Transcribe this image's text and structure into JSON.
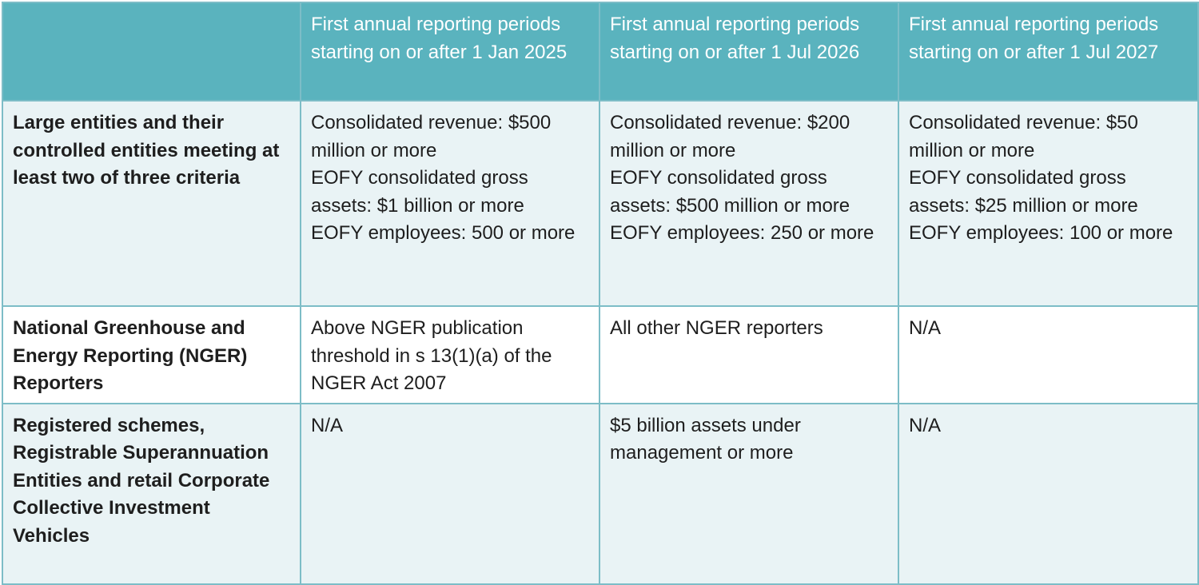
{
  "header": {
    "corner": "",
    "columns": [
      "First annual reporting periods starting on or after 1 Jan 2025",
      "First annual reporting periods starting on or after 1 Jul 2026",
      "First annual reporting periods starting on or after 1 Jul 2027"
    ]
  },
  "rows": [
    {
      "label": "Large entities and their controlled entities meeting at least two of three criteria",
      "cells": [
        "Consolidated revenue: $500 million or more\nEOFY consolidated gross assets: $1 billion or more\nEOFY employees: 500 or more",
        "Consolidated revenue: $200 million or more\nEOFY consolidated gross assets: $500 million or more\nEOFY employees: 250 or more",
        "Consolidated revenue: $50 million or more\nEOFY consolidated gross assets: $25 million or more\nEOFY employees: 100 or more"
      ]
    },
    {
      "label": "National Greenhouse and Energy Reporting (NGER) Reporters",
      "cells": [
        "Above NGER publication threshold in s 13(1)(a) of the NGER Act 2007",
        "All other NGER reporters",
        "N/A"
      ]
    },
    {
      "label": "Registered schemes, Registrable Superannuation Entities and retail Corporate Collective Investment Vehicles",
      "cells": [
        "N/A",
        "$5 billion assets under management or more",
        "N/A"
      ]
    }
  ],
  "colors": {
    "header_bg": "#5ab3be",
    "row_shade": "#e9f3f5",
    "border": "#7dbdc7"
  }
}
